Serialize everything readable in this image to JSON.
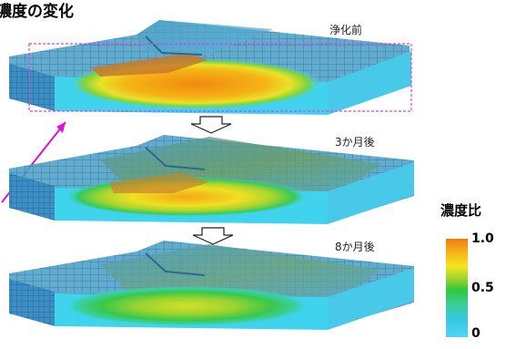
{
  "title": "濃度の変化",
  "stages": [
    {
      "label": "浄化前",
      "relative_concentration": 1.0
    },
    {
      "label": "3か月後",
      "relative_concentration": 0.7
    },
    {
      "label": "8か月後",
      "relative_concentration": 0.45
    }
  ],
  "legend": {
    "title": "濃度比",
    "ticks": [
      "1.0",
      "0.5",
      "0"
    ],
    "colors": [
      "#f07a10",
      "#f5e422",
      "#33c63c",
      "#35c8e2",
      "#4fd5f2"
    ]
  },
  "annotation": {
    "highlight_color": "#e040e0",
    "arrow_color": "#e010d0"
  }
}
